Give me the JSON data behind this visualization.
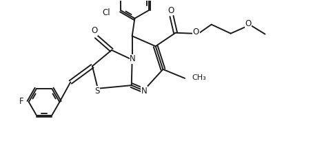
{
  "background": "#ffffff",
  "line_color": "#1a1a1a",
  "line_width": 1.4,
  "font_size": 8.5,
  "figsize": [
    4.7,
    2.24
  ],
  "dpi": 100,
  "xlim": [
    0,
    10
  ],
  "ylim": [
    0,
    4.78
  ]
}
